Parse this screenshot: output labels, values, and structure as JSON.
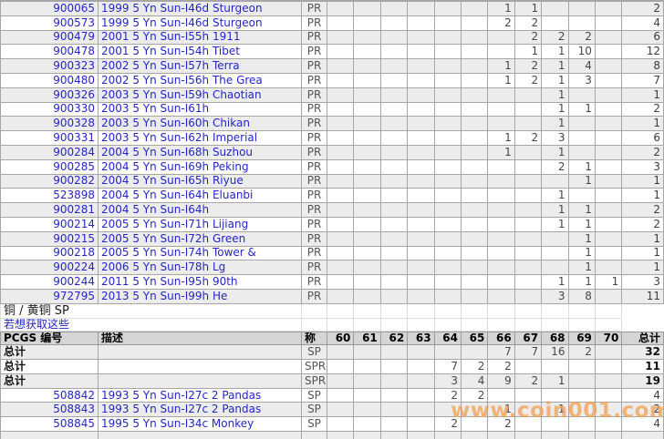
{
  "grade_columns": [
    "60",
    "61",
    "62",
    "63",
    "64",
    "65",
    "66",
    "67",
    "68",
    "69",
    "70"
  ],
  "headers": {
    "pcgs": "PCGS 编号",
    "desc": "描述",
    "designation": "称",
    "total": "总计"
  },
  "section": {
    "title": "铜 / 黄铜  SP",
    "link_text": "若想获取这些"
  },
  "watermark": {
    "text": "www.coin001.com",
    "color": "#f1a259"
  },
  "pr_table": {
    "rows": [
      {
        "pcgs": "900065",
        "desc": "1999 5 Yn Sun-I46d Sturgeon",
        "designation": "PR",
        "counts": {
          "66": 1,
          "67": 1
        },
        "total": 2
      },
      {
        "pcgs": "900573",
        "desc": "1999 5 Yn Sun-I46d Sturgeon",
        "designation": "PR",
        "counts": {
          "66": 2,
          "67": 2
        },
        "total": 4
      },
      {
        "pcgs": "900479",
        "desc": "2001 5 Yn Sun-I55h 1911",
        "designation": "PR",
        "counts": {
          "67": 2,
          "68": 2,
          "69": 2
        },
        "total": 6
      },
      {
        "pcgs": "900478",
        "desc": "2001 5 Yn Sun-I54h Tibet",
        "designation": "PR",
        "counts": {
          "67": 1,
          "68": 1,
          "69": 10
        },
        "total": 12
      },
      {
        "pcgs": "900323",
        "desc": "2002 5 Yn Sun-I57h Terra",
        "designation": "PR",
        "counts": {
          "66": 1,
          "67": 2,
          "68": 1,
          "69": 4
        },
        "total": 8
      },
      {
        "pcgs": "900480",
        "desc": "2002 5 Yn Sun-I56h The Grea",
        "designation": "PR",
        "counts": {
          "66": 1,
          "67": 2,
          "68": 1,
          "69": 3
        },
        "total": 7
      },
      {
        "pcgs": "900326",
        "desc": "2003 5 Yn Sun-I59h Chaotian",
        "designation": "PR",
        "counts": {
          "68": 1
        },
        "total": 1
      },
      {
        "pcgs": "900330",
        "desc": "2003 5 Yn Sun-I61h",
        "designation": "PR",
        "counts": {
          "68": 1,
          "69": 1
        },
        "total": 2
      },
      {
        "pcgs": "900328",
        "desc": "2003 5 Yn Sun-I60h Chikan",
        "designation": "PR",
        "counts": {
          "68": 1
        },
        "total": 1
      },
      {
        "pcgs": "900331",
        "desc": "2003 5 Yn Sun-I62h Imperial",
        "designation": "PR",
        "counts": {
          "66": 1,
          "67": 2,
          "68": 3
        },
        "total": 6
      },
      {
        "pcgs": "900284",
        "desc": "2004 5 Yn Sun-I68h Suzhou",
        "designation": "PR",
        "counts": {
          "66": 1,
          "68": 1
        },
        "total": 2
      },
      {
        "pcgs": "900285",
        "desc": "2004 5 Yn Sun-I69h Peking",
        "designation": "PR",
        "counts": {
          "68": 2,
          "69": 1
        },
        "total": 3
      },
      {
        "pcgs": "900282",
        "desc": "2004 5 Yn Sun-I65h Riyue",
        "designation": "PR",
        "counts": {
          "69": 1
        },
        "total": 1
      },
      {
        "pcgs": "523898",
        "desc": "2004 5 Yn Sun-I64h Eluanbi",
        "designation": "PR",
        "counts": {
          "68": 1
        },
        "total": 1
      },
      {
        "pcgs": "900281",
        "desc": "2004 5 Yn Sun-I64h",
        "designation": "PR",
        "counts": {
          "68": 1,
          "69": 1
        },
        "total": 2
      },
      {
        "pcgs": "900214",
        "desc": "2005 5 Yn Sun-I71h Lijiang",
        "designation": "PR",
        "counts": {
          "68": 1,
          "69": 1
        },
        "total": 2
      },
      {
        "pcgs": "900215",
        "desc": "2005 5 Yn Sun-I72h Green",
        "designation": "PR",
        "counts": {
          "69": 1
        },
        "total": 1
      },
      {
        "pcgs": "900218",
        "desc": "2005 5 Yn Sun-I74h Tower &",
        "designation": "PR",
        "counts": {
          "69": 1
        },
        "total": 1
      },
      {
        "pcgs": "900224",
        "desc": "2006 5 Yn Sun-I78h Lg",
        "designation": "PR",
        "counts": {
          "69": 1
        },
        "total": 1
      },
      {
        "pcgs": "900244",
        "desc": "2011 5 Yn Sun-I95h 90th",
        "designation": "PR",
        "counts": {
          "68": 1,
          "69": 1,
          "70": 1
        },
        "total": 3
      },
      {
        "pcgs": "972795",
        "desc": "2013 5 Yn Sun-I99h He",
        "designation": "PR",
        "counts": {
          "68": 3,
          "69": 8
        },
        "total": 11
      }
    ]
  },
  "sp_table": {
    "rows": [
      {
        "pcgs": "总计",
        "desc": "",
        "designation": "SP",
        "counts": {
          "66": 7,
          "67": 7,
          "68": 16,
          "69": 2
        },
        "total": 32,
        "is_total": true
      },
      {
        "pcgs": "总计",
        "desc": "",
        "designation": "SPR",
        "counts": {
          "64": 7,
          "65": 2,
          "66": 2
        },
        "total": 11,
        "is_total": true
      },
      {
        "pcgs": "总计",
        "desc": "",
        "designation": "SPR",
        "counts": {
          "64": 3,
          "65": 4,
          "66": 9,
          "67": 2,
          "68": 1
        },
        "total": 19,
        "is_total": true
      },
      {
        "pcgs": "508842",
        "desc": "1993 5 Yn Sun-I27c 2 Pandas",
        "designation": "SP",
        "counts": {
          "64": 2,
          "65": 2
        },
        "total": 4
      },
      {
        "pcgs": "508843",
        "desc": "1993 5 Yn Sun-I27c 2 Pandas",
        "designation": "SP",
        "counts": {
          "66": 1,
          "68": 1
        },
        "total": 2
      },
      {
        "pcgs": "508845",
        "desc": "1995 5 Yn Sun-I34c Monkey",
        "designation": "SP",
        "counts": {
          "64": 2,
          "66": 2
        },
        "total": 4
      }
    ]
  }
}
